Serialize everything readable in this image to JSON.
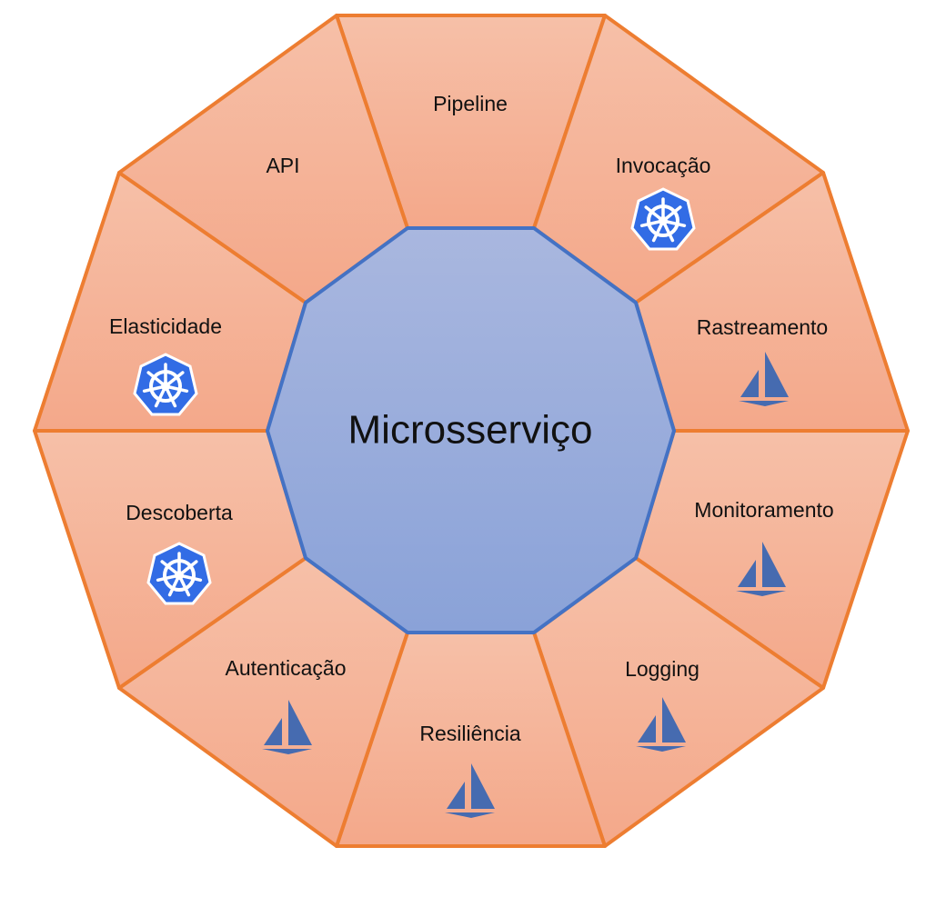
{
  "center": {
    "label": "Microsserviço"
  },
  "segments": [
    {
      "id": "pipeline",
      "label": "Pipeline",
      "icon": ""
    },
    {
      "id": "invocacao",
      "label": "Invocação",
      "icon": "kubernetes-icon"
    },
    {
      "id": "rastreamento",
      "label": "Rastreamento",
      "icon": "istio-icon"
    },
    {
      "id": "monitoramento",
      "label": "Monitoramento",
      "icon": "istio-icon"
    },
    {
      "id": "logging",
      "label": "Logging",
      "icon": "istio-icon"
    },
    {
      "id": "resiliencia",
      "label": "Resiliência",
      "icon": "istio-icon"
    },
    {
      "id": "autenticacao",
      "label": "Autenticação",
      "icon": "istio-icon"
    },
    {
      "id": "descoberta",
      "label": "Descoberta",
      "icon": "kubernetes-icon"
    },
    {
      "id": "elasticidade",
      "label": "Elasticidade",
      "icon": "kubernetes-icon"
    },
    {
      "id": "api",
      "label": "API",
      "icon": ""
    }
  ],
  "colors": {
    "segment_fill_top": "#f6c0a8",
    "segment_fill_bottom": "#f4a88a",
    "segment_stroke": "#ed7d31",
    "center_fill_top": "#a9b7df",
    "center_fill_bottom": "#8aa2d8",
    "center_stroke": "#4472c4",
    "kubernetes": "#326ce5",
    "istio": "#466bb0"
  }
}
